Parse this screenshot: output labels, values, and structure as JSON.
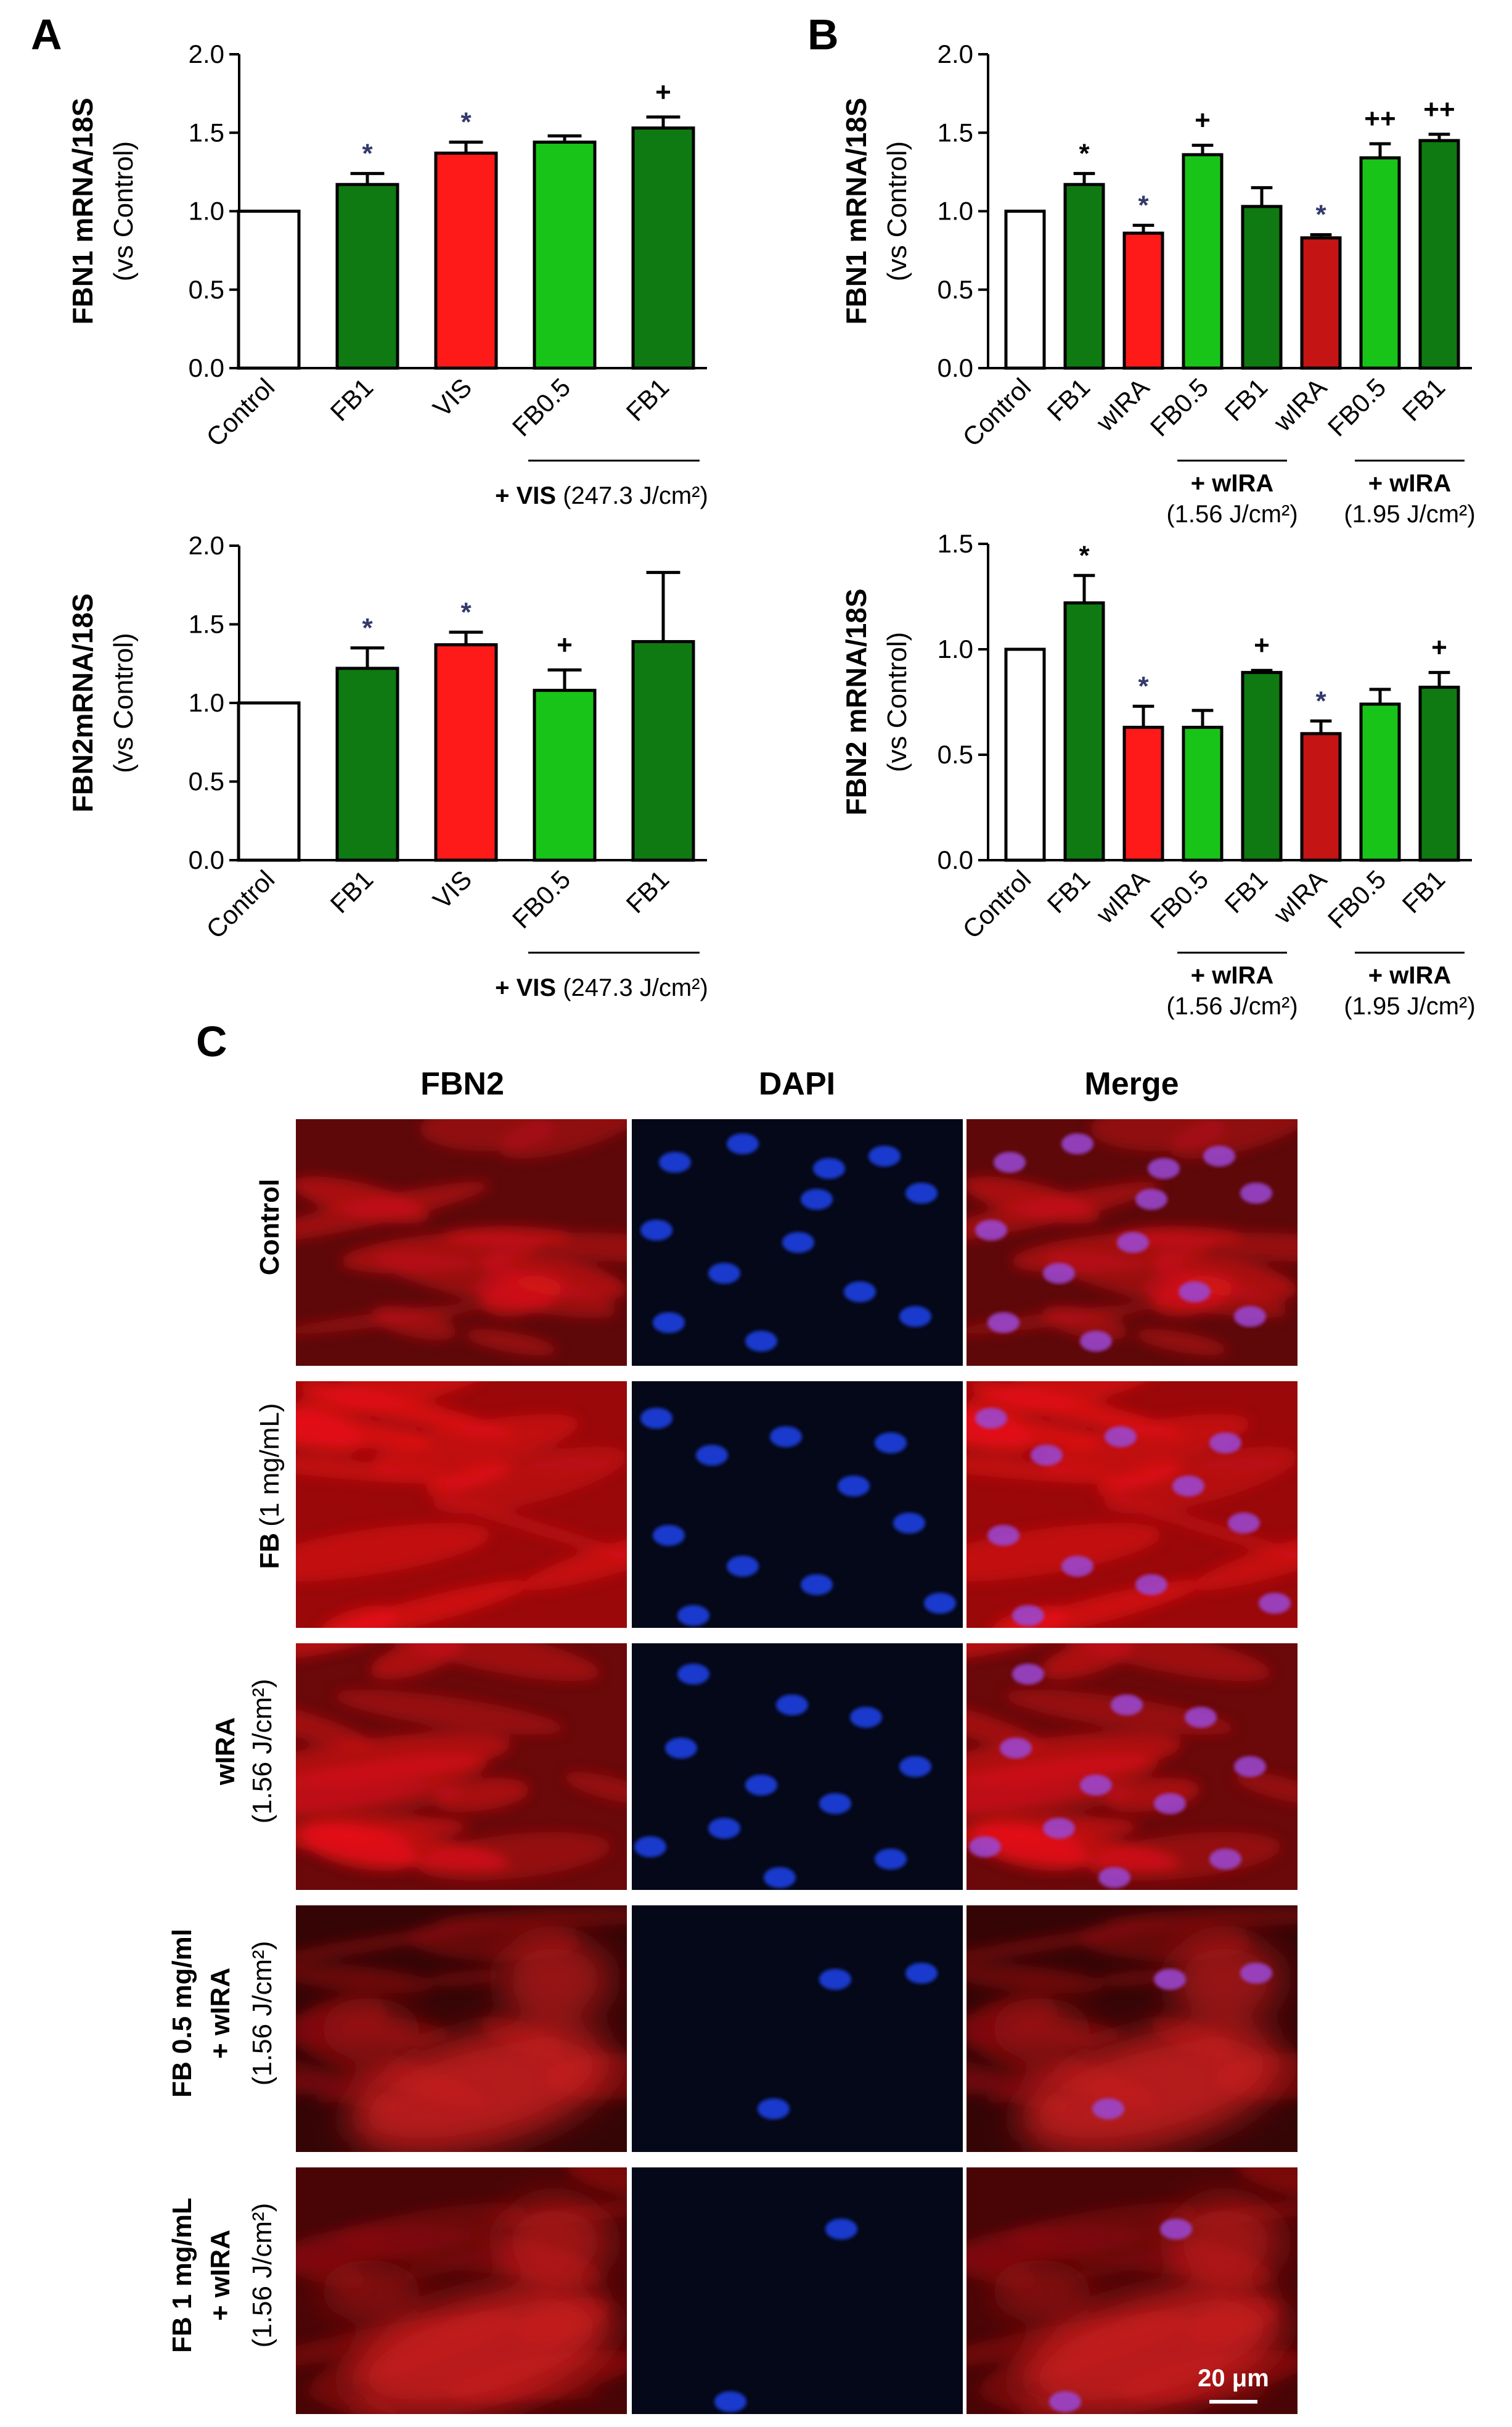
{
  "panels": {
    "a": "A",
    "b": "B",
    "c": "C"
  },
  "colors": {
    "control": "#ffffff",
    "dark_green": "#0f7a12",
    "light_green": "#19c419",
    "red": "#ff1a1a",
    "dark_red": "#c41414",
    "asterisk": "#333a6b",
    "sig_black": "#000000"
  },
  "chart_data": [
    {
      "id": "A_top",
      "panel": "A",
      "type": "bar",
      "ylabel": "FBN1 mRNA/18S",
      "ysub": "(vs Control)",
      "ylim": [
        0,
        2.0
      ],
      "yticks": [
        "0.0",
        "0.5",
        "1.0",
        "1.5",
        "2.0"
      ],
      "categories": [
        "Control",
        "FB1",
        "VIS",
        "FB0.5",
        "FB1"
      ],
      "values": [
        1.0,
        1.17,
        1.37,
        1.44,
        1.53
      ],
      "errors": [
        0.0,
        0.07,
        0.07,
        0.04,
        0.07
      ],
      "colors": [
        "control",
        "dark_green",
        "red",
        "light_green",
        "dark_green"
      ],
      "sig": [
        "",
        "*",
        "*",
        "",
        "+"
      ],
      "conditions": [
        {
          "from": 3,
          "to": 4,
          "pre": "+ VIS ",
          "label": "(247.3 J/cm²)"
        }
      ]
    },
    {
      "id": "A_bottom",
      "panel": "A",
      "type": "bar",
      "ylabel": "FBN2mRNA/18S",
      "ysub": "(vs Control)",
      "ylim": [
        0,
        2.0
      ],
      "yticks": [
        "0.0",
        "0.5",
        "1.0",
        "1.5",
        "2.0"
      ],
      "categories": [
        "Control",
        "FB1",
        "VIS",
        "FB0.5",
        "FB1"
      ],
      "values": [
        1.0,
        1.22,
        1.37,
        1.08,
        1.39
      ],
      "errors": [
        0.0,
        0.13,
        0.08,
        0.13,
        0.44
      ],
      "colors": [
        "control",
        "dark_green",
        "red",
        "light_green",
        "dark_green"
      ],
      "sig": [
        "",
        "*",
        "*",
        "+",
        ""
      ],
      "conditions": [
        {
          "from": 3,
          "to": 4,
          "pre": "+ VIS ",
          "label": "(247.3 J/cm²)"
        }
      ]
    },
    {
      "id": "B_top",
      "panel": "B",
      "type": "bar",
      "ylabel": "FBN1 mRNA/18S",
      "ysub": "(vs Control)",
      "ylim": [
        0,
        2.0
      ],
      "yticks": [
        "0.0",
        "0.5",
        "1.0",
        "1.5",
        "2.0"
      ],
      "categories": [
        "Control",
        "FB1",
        "wIRA",
        "FB0.5",
        "FB1",
        "wIRA",
        "FB0.5",
        "FB1"
      ],
      "values": [
        1.0,
        1.17,
        0.86,
        1.36,
        1.03,
        0.83,
        1.34,
        1.45
      ],
      "errors": [
        0.0,
        0.07,
        0.05,
        0.06,
        0.12,
        0.02,
        0.09,
        0.04
      ],
      "colors": [
        "control",
        "dark_green",
        "red",
        "light_green",
        "dark_green",
        "dark_red",
        "light_green",
        "dark_green"
      ],
      "sig": [
        "",
        "*",
        "*",
        "+",
        "",
        "*",
        "++",
        "++"
      ],
      "conditions": [
        {
          "from": 3,
          "to": 4,
          "pre": "",
          "label": "+ wIRA",
          "sub": "(1.56 J/cm²)"
        },
        {
          "from": 6,
          "to": 7,
          "pre": "",
          "label": "+ wIRA",
          "sub": "(1.95 J/cm²)"
        }
      ]
    },
    {
      "id": "B_bottom",
      "panel": "B",
      "type": "bar",
      "ylabel": "FBN2 mRNA/18S",
      "ysub": "(vs Control)",
      "ylim": [
        0,
        1.5
      ],
      "yticks": [
        "0.0",
        "0.5",
        "1.0",
        "1.5"
      ],
      "categories": [
        "Control",
        "FB1",
        "wIRA",
        "FB0.5",
        "FB1",
        "wIRA",
        "FB0.5",
        "FB1"
      ],
      "values": [
        1.0,
        1.22,
        0.63,
        0.63,
        0.89,
        0.6,
        0.74,
        0.82
      ],
      "errors": [
        0.0,
        0.13,
        0.1,
        0.08,
        0.01,
        0.06,
        0.07,
        0.07
      ],
      "colors": [
        "control",
        "dark_green",
        "red",
        "light_green",
        "dark_green",
        "dark_red",
        "light_green",
        "dark_green"
      ],
      "sig": [
        "",
        "*",
        "*",
        "",
        "+",
        "*",
        "",
        "+"
      ],
      "conditions": [
        {
          "from": 3,
          "to": 4,
          "pre": "",
          "label": "+ wIRA",
          "sub": "(1.56 J/cm²)"
        },
        {
          "from": 6,
          "to": 7,
          "pre": "",
          "label": "+ wIRA",
          "sub": "(1.95 J/cm²)"
        }
      ]
    }
  ],
  "microscopy": {
    "columns": [
      "FBN2",
      "DAPI",
      "Merge"
    ],
    "rows": [
      {
        "line1": "Control",
        "line2": ""
      },
      {
        "line1": "FB",
        "line1b": "(1 mg/mL)",
        "line2": ""
      },
      {
        "line1": "wIRA",
        "line2": "(1.56 J/cm²)"
      },
      {
        "line1": "FB 0.5 mg/ml",
        "line1c": "+ wIRA",
        "line2": "(1.56 J/cm²)"
      },
      {
        "line1": "FB 1 mg/mL",
        "line1c": "+ wIRA",
        "line2": "(1.56 J/cm²)"
      }
    ],
    "scale_bar": "20 μm"
  }
}
